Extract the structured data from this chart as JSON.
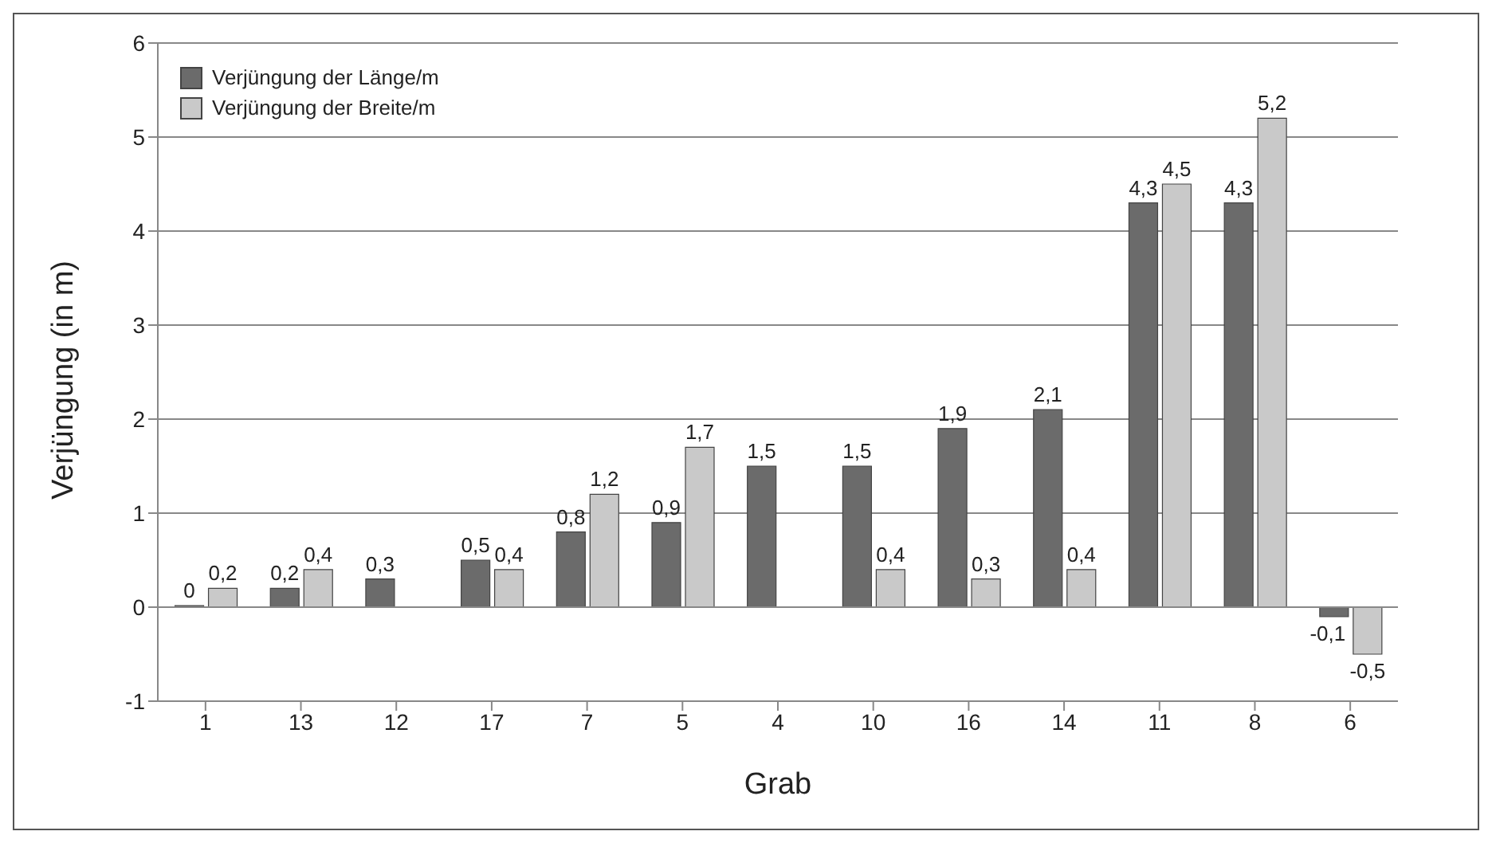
{
  "chart_data": {
    "type": "bar",
    "xlabel": "Grab",
    "ylabel": "Verjüngung (in m)",
    "categories": [
      "1",
      "13",
      "12",
      "17",
      "7",
      "5",
      "4",
      "10",
      "16",
      "14",
      "11",
      "8",
      "6"
    ],
    "series": [
      {
        "name": "Verjüngung der Länge/m",
        "color": "#6b6b6b",
        "values": [
          0,
          0.2,
          0.3,
          0.5,
          0.8,
          0.9,
          1.5,
          1.5,
          1.9,
          2.1,
          4.3,
          4.3,
          -0.1
        ],
        "value_labels": [
          "0",
          "0,2",
          "0,3",
          "0,5",
          "0,8",
          "0,9",
          "1,5",
          "1,5",
          "1,9",
          "2,1",
          "4,3",
          "4,3",
          "-0,1"
        ]
      },
      {
        "name": "Verjüngung der Breite/m",
        "color": "#c9c9c9",
        "values": [
          0.2,
          0.4,
          null,
          0.4,
          1.2,
          1.7,
          null,
          0.4,
          0.3,
          0.4,
          4.5,
          5.2,
          -0.5
        ],
        "value_labels": [
          "0,2",
          "0,4",
          null,
          "0,4",
          "1,2",
          "1,7",
          null,
          "0,4",
          "0,3",
          "0,4",
          "4,5",
          "5,2",
          "-0,5"
        ]
      }
    ],
    "ylim": [
      -1,
      6
    ],
    "yticks": [
      -1,
      0,
      1,
      2,
      3,
      4,
      5,
      6
    ],
    "grid": "y",
    "legend": "top left"
  }
}
